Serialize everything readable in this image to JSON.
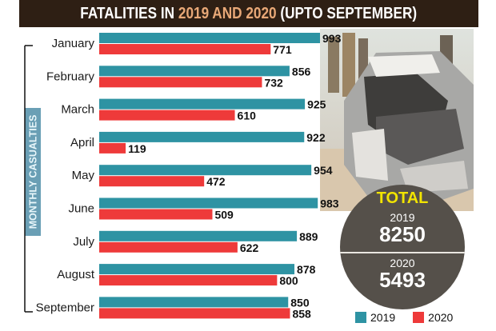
{
  "header": {
    "title_part1": "FATALITIES IN ",
    "title_highlight": "2019 AND 2020",
    "title_part2": " (UPTO SEPTEMBER)"
  },
  "side_label": "MONTHLY CASUALTIES",
  "colors": {
    "series_2019": "#2e93a3",
    "series_2020": "#ee3a3a",
    "header_bg": "#2e1f14",
    "header_highlight": "#e8a877",
    "total_bg": "#55504a",
    "total_title": "#f2e400"
  },
  "total": {
    "title": "TOTAL",
    "year1": "2019",
    "value1": "8250",
    "year2": "2020",
    "value2": "5493"
  },
  "photo": {
    "icon": "car-crash-photo"
  },
  "chart_data": {
    "type": "bar",
    "orientation": "horizontal",
    "title": "FATALITIES IN 2019 AND 2020 (UPTO SEPTEMBER)",
    "ylabel": "MONTHLY CASUALTIES",
    "xlabel": "",
    "categories": [
      "January",
      "February",
      "March",
      "April",
      "May",
      "June",
      "July",
      "August",
      "September"
    ],
    "series": [
      {
        "name": "2019",
        "values": [
          993,
          856,
          925,
          922,
          954,
          983,
          889,
          878,
          850
        ]
      },
      {
        "name": "2020",
        "values": [
          771,
          732,
          610,
          119,
          472,
          509,
          622,
          800,
          858
        ]
      }
    ],
    "xlim": [
      0,
      1000
    ],
    "grid": false,
    "legend": "bottom-right"
  }
}
